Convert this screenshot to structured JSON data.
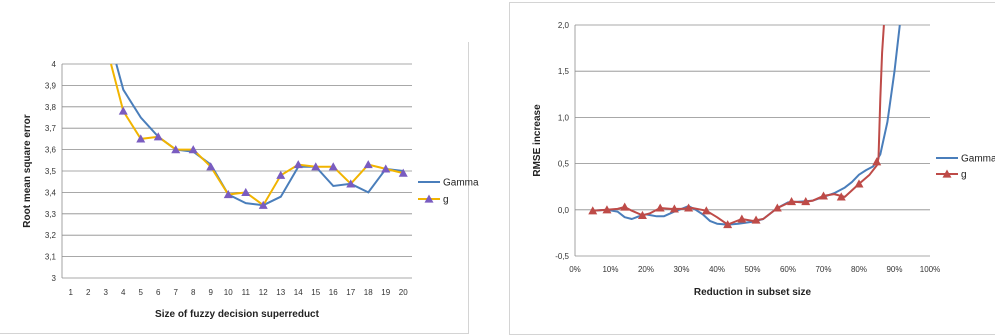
{
  "chart_data": [
    {
      "type": "line",
      "title": "",
      "xlabel": "Size of fuzzy decision superreduct",
      "ylabel": "Root mean square error",
      "x": [
        1,
        2,
        3,
        4,
        5,
        6,
        7,
        8,
        9,
        10,
        11,
        12,
        13,
        14,
        15,
        16,
        17,
        18,
        19,
        20
      ],
      "xticks": [
        "1",
        "2",
        "3",
        "4",
        "5",
        "6",
        "7",
        "8",
        "9",
        "10",
        "11",
        "12",
        "13",
        "14",
        "15",
        "16",
        "17",
        "18",
        "19",
        "20"
      ],
      "yticks": [
        "3",
        "3,1",
        "3,2",
        "3,3",
        "3,4",
        "3,5",
        "3,6",
        "3,7",
        "3,8",
        "3,9",
        "4"
      ],
      "ylim": [
        3,
        4
      ],
      "grid": "horizontal",
      "legend_position": "right",
      "series": [
        {
          "name": "Gamma",
          "color": "#4a7ebb",
          "marker": "none",
          "x": [
            3.6,
            4,
            5,
            6,
            7,
            8,
            9,
            10,
            11,
            12,
            13,
            14,
            15,
            16,
            17,
            18,
            19,
            20
          ],
          "values": [
            4.0,
            3.88,
            3.75,
            3.66,
            3.6,
            3.59,
            3.53,
            3.39,
            3.35,
            3.34,
            3.38,
            3.52,
            3.52,
            3.43,
            3.44,
            3.4,
            3.51,
            3.5
          ]
        },
        {
          "name": "g",
          "color": "#f1b400",
          "marker": "triangle",
          "marker_color": "#7a5cc0",
          "x": [
            3.3,
            4,
            5,
            6,
            7,
            8,
            9,
            10,
            11,
            12,
            13,
            14,
            15,
            16,
            17,
            18,
            19,
            20
          ],
          "values": [
            4.0,
            3.78,
            3.65,
            3.66,
            3.6,
            3.6,
            3.52,
            3.39,
            3.4,
            3.34,
            3.48,
            3.53,
            3.52,
            3.52,
            3.44,
            3.53,
            3.51,
            3.49
          ]
        }
      ]
    },
    {
      "type": "line",
      "title": "",
      "xlabel": "Reduction in subset size",
      "ylabel": "RMSE increase",
      "xticks": [
        "0%",
        "10%",
        "20%",
        "30%",
        "40%",
        "50%",
        "60%",
        "70%",
        "80%",
        "90%",
        "100%"
      ],
      "yticks": [
        "-0,5",
        "0,0",
        "0,5",
        "1,0",
        "1,5",
        "2,0"
      ],
      "xlim": [
        0,
        100
      ],
      "ylim": [
        -0.5,
        2.0
      ],
      "grid": "horizontal",
      "legend_position": "right",
      "series": [
        {
          "name": "Gamma",
          "color": "#4a7ebb",
          "marker": "none",
          "x": [
            5,
            9,
            12,
            14,
            16,
            18,
            20,
            23,
            25,
            28,
            30,
            32,
            34,
            36,
            38,
            40,
            43,
            46,
            50,
            53,
            57,
            60,
            64,
            67,
            70,
            73,
            76,
            78,
            80,
            82,
            84,
            86,
            88,
            90,
            91.5
          ],
          "values": [
            -0.01,
            0.0,
            -0.02,
            -0.08,
            -0.1,
            -0.07,
            -0.05,
            -0.07,
            -0.07,
            -0.02,
            0.01,
            0.04,
            0.0,
            -0.05,
            -0.12,
            -0.15,
            -0.16,
            -0.15,
            -0.13,
            -0.1,
            0.02,
            0.08,
            0.09,
            0.1,
            0.14,
            0.18,
            0.24,
            0.3,
            0.38,
            0.43,
            0.47,
            0.6,
            0.95,
            1.5,
            2.0
          ]
        },
        {
          "name": "g",
          "color": "#be4b48",
          "marker": "triangle",
          "marker_color": "#be4b48",
          "x": [
            5,
            9,
            12,
            14,
            16,
            19,
            21,
            24,
            27,
            30,
            33,
            37,
            40,
            43,
            47,
            50,
            53,
            57,
            61,
            64,
            67,
            70,
            73,
            76,
            80,
            83,
            85,
            85.5,
            86,
            86.5,
            87
          ],
          "values": [
            -0.01,
            0.0,
            0.01,
            0.03,
            -0.01,
            -0.06,
            -0.04,
            0.02,
            0.01,
            0.01,
            0.02,
            -0.01,
            -0.08,
            -0.16,
            -0.1,
            -0.12,
            -0.1,
            0.02,
            0.09,
            0.08,
            0.1,
            0.15,
            0.17,
            0.14,
            0.28,
            0.38,
            0.48,
            0.56,
            1.2,
            1.7,
            2.0
          ],
          "marker_x": [
            5,
            9,
            14,
            19,
            24,
            28,
            32,
            37,
            43,
            47,
            51,
            57,
            61,
            65,
            70,
            75,
            80,
            85
          ],
          "marker_values": [
            -0.01,
            0.0,
            0.03,
            -0.06,
            0.02,
            0.01,
            0.02,
            -0.01,
            -0.16,
            -0.1,
            -0.11,
            0.02,
            0.09,
            0.09,
            0.15,
            0.14,
            0.28,
            0.52
          ]
        }
      ]
    }
  ]
}
